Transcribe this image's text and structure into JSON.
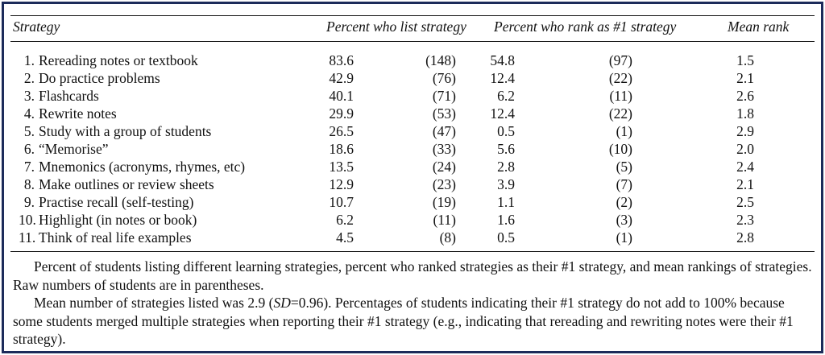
{
  "table": {
    "headers": {
      "strategy": "Strategy",
      "percent_list": "Percent who list strategy",
      "percent_rank1": "Percent who rank as #1 strategy",
      "mean_rank": "Mean rank"
    },
    "rows": [
      {
        "num": "1.",
        "label": "Rereading notes or textbook",
        "pct_list": "83.6",
        "n_list": "(148)",
        "pct_rank1": "54.8",
        "n_rank1": "(97)",
        "mean": "1.5"
      },
      {
        "num": "2.",
        "label": "Do practice problems",
        "pct_list": "42.9",
        "n_list": "(76)",
        "pct_rank1": "12.4",
        "n_rank1": "(22)",
        "mean": "2.1"
      },
      {
        "num": "3.",
        "label": "Flashcards",
        "pct_list": "40.1",
        "n_list": "(71)",
        "pct_rank1": "6.2",
        "n_rank1": "(11)",
        "mean": "2.6"
      },
      {
        "num": "4.",
        "label": "Rewrite notes",
        "pct_list": "29.9",
        "n_list": "(53)",
        "pct_rank1": "12.4",
        "n_rank1": "(22)",
        "mean": "1.8"
      },
      {
        "num": "5.",
        "label": "Study with a group of students",
        "pct_list": "26.5",
        "n_list": "(47)",
        "pct_rank1": "0.5",
        "n_rank1": "(1)",
        "mean": "2.9"
      },
      {
        "num": "6.",
        "label": "“Memorise”",
        "pct_list": "18.6",
        "n_list": "(33)",
        "pct_rank1": "5.6",
        "n_rank1": "(10)",
        "mean": "2.0"
      },
      {
        "num": "7.",
        "label": "Mnemonics (acronyms, rhymes, etc)",
        "pct_list": "13.5",
        "n_list": "(24)",
        "pct_rank1": "2.8",
        "n_rank1": "(5)",
        "mean": "2.4"
      },
      {
        "num": "8.",
        "label": "Make outlines or review sheets",
        "pct_list": "12.9",
        "n_list": "(23)",
        "pct_rank1": "3.9",
        "n_rank1": "(7)",
        "mean": "2.1"
      },
      {
        "num": "9.",
        "label": "Practise recall (self-testing)",
        "pct_list": "10.7",
        "n_list": "(19)",
        "pct_rank1": "1.1",
        "n_rank1": "(2)",
        "mean": "2.5"
      },
      {
        "num": "10.",
        "label": "Highlight (in notes or book)",
        "pct_list": "6.2",
        "n_list": "(11)",
        "pct_rank1": "1.6",
        "n_rank1": "(3)",
        "mean": "2.3"
      },
      {
        "num": "11.",
        "label": "Think of real life examples",
        "pct_list": "4.5",
        "n_list": "(8)",
        "pct_rank1": "0.5",
        "n_rank1": "(1)",
        "mean": "2.8"
      }
    ]
  },
  "notes": {
    "p1": "Percent of students listing different learning strategies, percent who ranked strategies as their #1 strategy, and mean rankings of strategies. Raw numbers of students are in parentheses.",
    "p2_pre": "Mean number of strategies listed was 2.9 (",
    "p2_sd": "SD",
    "p2_post": "=0.96). Percentages of students indicating their #1 strategy do not add to 100% because some students merged multiple strategies when reporting their #1 strategy (e.g., indicating that rereading and rewriting notes were their #1 strategy)."
  },
  "colors": {
    "frame": "#1c2b5a",
    "text": "#111111"
  }
}
